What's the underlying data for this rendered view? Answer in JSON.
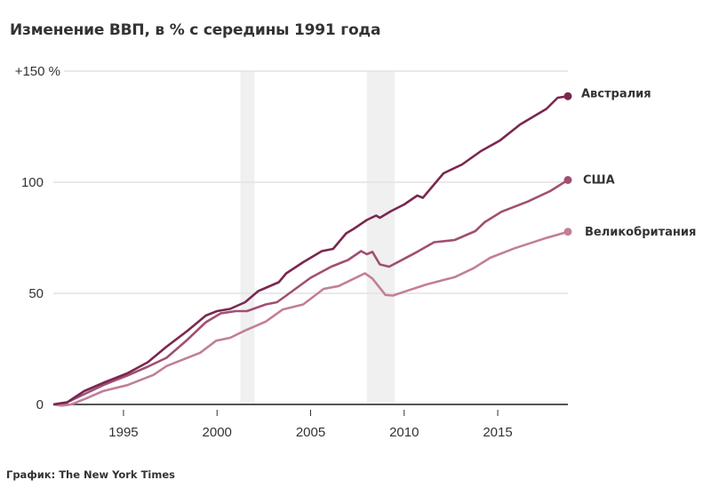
{
  "chart_data": {
    "type": "line",
    "title": "Изменение ВВП, в % с середины 1991 года",
    "xlabel": "",
    "ylabel": "",
    "xlim": [
      1991.25,
      2018.75
    ],
    "ylim": [
      0,
      150
    ],
    "x_ticks": [
      1995,
      2000,
      2005,
      2010,
      2015
    ],
    "y_ticks": [
      {
        "value": 0,
        "label": "0"
      },
      {
        "value": 50,
        "label": "50"
      },
      {
        "value": 100,
        "label": "100"
      },
      {
        "value": 150,
        "label": "+150 %"
      }
    ],
    "grid": true,
    "legend": "inline labels at line ends (right)",
    "shaded_periods": [
      [
        2001.25,
        2002.0
      ],
      [
        2008.0,
        2009.5
      ]
    ],
    "series": [
      {
        "name": "Австралия",
        "color": "#7a2750",
        "x": [
          1991.25,
          1992.0,
          1992.9,
          1994.0,
          1995.2,
          1996.3,
          1997.3,
          1998.4,
          1999.4,
          2000.0,
          2000.7,
          2001.5,
          2002.2,
          2003.3,
          2003.7,
          2004.6,
          2005.6,
          2006.2,
          2006.9,
          2007.3,
          2008.0,
          2008.5,
          2008.7,
          2009.3,
          2010.0,
          2010.7,
          2011.0,
          2012.1,
          2013.1,
          2014.1,
          2015.1,
          2016.2,
          2017.6,
          2018.2,
          2018.75
        ],
        "y": [
          0,
          1,
          6,
          10,
          14,
          19,
          26,
          33,
          40,
          42,
          43,
          46,
          51,
          55,
          59,
          64,
          69,
          70,
          77,
          79,
          83,
          85,
          84,
          87,
          90,
          94,
          93,
          104,
          108,
          114,
          118.7,
          126,
          133,
          138,
          138.7
        ]
      },
      {
        "name": "США",
        "color": "#a14f72",
        "x": [
          1991.25,
          1992.0,
          1993.0,
          1994.0,
          1995.2,
          1996.3,
          1997.3,
          1998.4,
          1999.4,
          2000.2,
          2001.0,
          2001.6,
          2002.6,
          2003.2,
          2003.7,
          2005.0,
          2006.1,
          2007.0,
          2007.7,
          2008.0,
          2008.3,
          2008.7,
          2009.2,
          2009.8,
          2010.7,
          2011.6,
          2012.7,
          2013.8,
          2014.3,
          2015.2,
          2016.6,
          2017.8,
          2018.75
        ],
        "y": [
          0,
          1,
          5,
          9,
          13,
          17,
          21,
          29,
          37,
          41,
          42,
          42,
          45,
          46,
          49,
          57,
          62,
          65,
          69,
          67.6,
          68.7,
          63,
          62,
          64.7,
          68.7,
          73,
          74,
          78,
          82,
          86.7,
          91.3,
          96,
          101
        ]
      },
      {
        "name": "Великобритания",
        "color": "#c27f97",
        "x": [
          1991.25,
          1991.7,
          1992.2,
          1993.0,
          1993.9,
          1995.2,
          1996.6,
          1997.3,
          1999.1,
          1999.95,
          2000.7,
          2001.5,
          2002.6,
          2003.5,
          2004.6,
          2005.7,
          2006.5,
          2007.9,
          2008.3,
          2009.0,
          2009.4,
          2010.2,
          2011.2,
          2012.1,
          2012.7,
          2013.7,
          2014.6,
          2015.9,
          2017.5,
          2018.75
        ],
        "y": [
          0,
          -0.5,
          0,
          2.7,
          6,
          8.7,
          13.3,
          17.3,
          23.3,
          28.7,
          30,
          33.3,
          37.3,
          42.7,
          45,
          52,
          53.3,
          59,
          56.7,
          49.3,
          49,
          51.3,
          54,
          56,
          57.3,
          61.3,
          66,
          70.3,
          74.7,
          77.7
        ]
      }
    ]
  },
  "credit": "График: The New York Times"
}
